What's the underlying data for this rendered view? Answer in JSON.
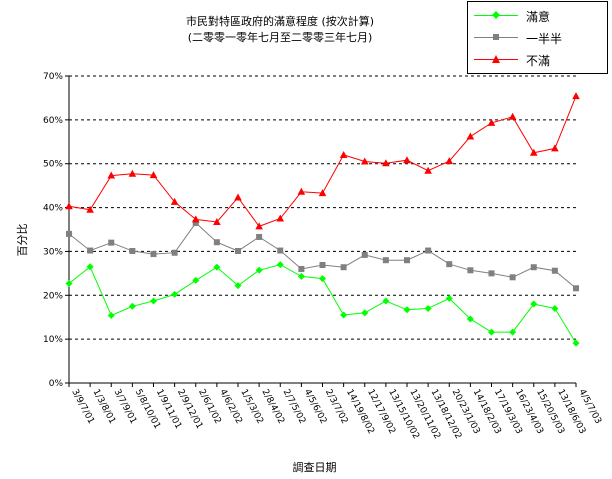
{
  "chart_data": {
    "type": "line",
    "title": [
      "市民對特區政府的滿意程度 (按次計算)",
      "(二零零一零年七月至二零零三年七月)"
    ],
    "xlabel": "調查日期",
    "ylabel": "百分比",
    "ylim": [
      0,
      70
    ],
    "yticks": [
      "0%",
      "10%",
      "20%",
      "30%",
      "40%",
      "50%",
      "60%",
      "70%"
    ],
    "grid": "horizontal dashed",
    "legend_position": "top-right",
    "categories": [
      "3/9/7/01",
      "1/3/8/01",
      "3/7/9/01",
      "5/8/10/01",
      "1/9/11/01",
      "2/9/12/01",
      "2/6/1/02",
      "4/6/2/02",
      "1/5/3/02",
      "2/8/4/02",
      "2/7/5/02",
      "4/5/6/02",
      "2/3/7/02",
      "14/19/8/02",
      "12/17/9/02",
      "13/15/10/02",
      "13/20/11/02",
      "13/18/12/02",
      "20/23/1/03",
      "14/18/2/03",
      "17/19/3/03",
      "16/23/4/03",
      "15/20/5/03",
      "13/18/6/03",
      "4/5/7/03"
    ],
    "series": [
      {
        "name": "滿意",
        "color": "#00ff00",
        "marker": "diamond",
        "values": [
          22.7,
          26.5,
          15.4,
          17.5,
          18.7,
          20.2,
          23.4,
          26.4,
          22.2,
          25.7,
          27.0,
          24.3,
          23.8,
          15.5,
          16.0,
          18.7,
          16.7,
          17.0,
          19.3,
          14.6,
          11.6,
          11.6,
          18.0,
          17.0,
          9.1
        ]
      },
      {
        "name": "一半半",
        "color": "#808080",
        "marker": "square",
        "values": [
          34.0,
          30.2,
          32.0,
          30.1,
          29.4,
          29.7,
          36.5,
          32.1,
          30.1,
          33.3,
          30.2,
          26.0,
          26.9,
          26.4,
          29.2,
          28.0,
          28.0,
          30.2,
          27.1,
          25.7,
          25.0,
          24.1,
          26.4,
          25.6,
          21.6
        ]
      },
      {
        "name": "不滿",
        "color": "#ff0000",
        "marker": "triangle",
        "values": [
          40.3,
          39.5,
          47.3,
          47.7,
          47.4,
          41.3,
          37.3,
          36.7,
          42.3,
          35.7,
          37.5,
          43.6,
          43.3,
          52.0,
          50.5,
          50.1,
          50.8,
          48.4,
          50.6,
          56.2,
          59.3,
          60.7,
          52.5,
          53.5,
          65.4
        ]
      }
    ]
  }
}
